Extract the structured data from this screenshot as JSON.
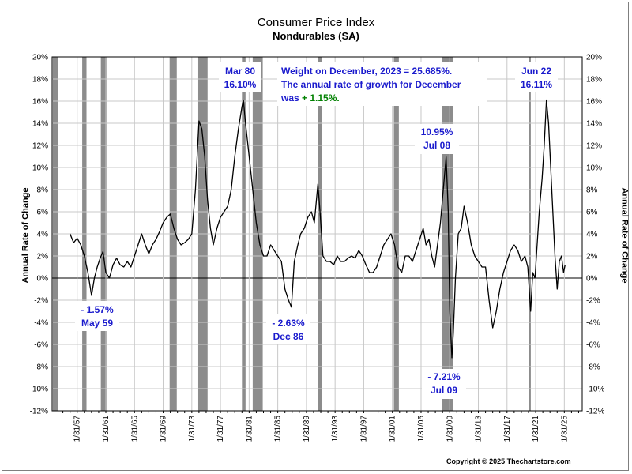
{
  "chart_data": {
    "type": "line",
    "title": "Consumer Price Index",
    "subtitle": "Nondurables (SA)",
    "ylabel": "Annual Rate of Change",
    "ylabel_right": "Annual Rate of Change",
    "ylim": [
      -12,
      20
    ],
    "xlim": [
      1953.5,
      2027.5
    ],
    "yticks": [
      -12,
      -10,
      -8,
      -6,
      -4,
      -2,
      0,
      2,
      4,
      6,
      8,
      10,
      12,
      14,
      16,
      18,
      20
    ],
    "ytick_labels": [
      "-12%",
      "-10%",
      "-8%",
      "-6%",
      "-4%",
      "-2%",
      "0%",
      "2%",
      "4%",
      "6%",
      "8%",
      "10%",
      "12%",
      "14%",
      "16%",
      "18%",
      "20%"
    ],
    "xtick_labels": [
      "1/31/57",
      "1/31/61",
      "1/31/65",
      "1/31/69",
      "1/31/73",
      "1/31/77",
      "1/31/81",
      "1/31/85",
      "1/31/89",
      "1/31/93",
      "1/31/97",
      "1/31/01",
      "1/31/05",
      "1/31/09",
      "1/31/13",
      "1/31/17",
      "1/31/21",
      "1/31/25"
    ],
    "xtick_years": [
      1957,
      1961,
      1965,
      1969,
      1973,
      1977,
      1981,
      1985,
      1989,
      1993,
      1997,
      2001,
      2005,
      2009,
      2013,
      2017,
      2021,
      2025
    ],
    "grid": true,
    "recessions": [
      [
        1953.6,
        1954.3
      ],
      [
        1957.7,
        1958.3
      ],
      [
        1960.3,
        1961.1
      ],
      [
        1969.9,
        1970.9
      ],
      [
        1973.9,
        1975.2
      ],
      [
        1980.0,
        1980.5
      ],
      [
        1981.5,
        1982.9
      ],
      [
        1990.6,
        1991.2
      ],
      [
        2001.2,
        2001.9
      ],
      [
        2007.9,
        2009.5
      ],
      [
        2020.1,
        2020.3
      ]
    ],
    "series": [
      {
        "color": "#000000",
        "x": [
          1956.0,
          1956.5,
          1957.0,
          1957.5,
          1958.0,
          1958.5,
          1959.0,
          1959.4,
          1959.8,
          1960.2,
          1960.6,
          1961.0,
          1961.5,
          1962.0,
          1962.5,
          1963.0,
          1963.5,
          1964.0,
          1964.5,
          1965.0,
          1965.5,
          1966.0,
          1966.5,
          1967.0,
          1967.5,
          1968.0,
          1968.5,
          1969.0,
          1969.5,
          1970.0,
          1970.5,
          1971.0,
          1971.5,
          1972.0,
          1972.5,
          1973.0,
          1973.5,
          1974.0,
          1974.4,
          1974.8,
          1975.2,
          1975.6,
          1976.0,
          1976.5,
          1977.0,
          1977.5,
          1978.0,
          1978.5,
          1979.0,
          1979.5,
          1980.0,
          1980.2,
          1980.5,
          1981.0,
          1981.5,
          1982.0,
          1982.5,
          1983.0,
          1983.5,
          1984.0,
          1984.5,
          1985.0,
          1985.5,
          1986.0,
          1986.5,
          1986.9,
          1987.3,
          1987.8,
          1988.2,
          1988.7,
          1989.2,
          1989.7,
          1990.1,
          1990.6,
          1990.9,
          1991.3,
          1991.8,
          1992.3,
          1992.8,
          1993.3,
          1993.8,
          1994.3,
          1994.8,
          1995.3,
          1995.8,
          1996.3,
          1996.8,
          1997.3,
          1997.8,
          1998.3,
          1998.8,
          1999.3,
          1999.8,
          2000.3,
          2000.8,
          2001.3,
          2001.8,
          2002.3,
          2002.8,
          2003.3,
          2003.8,
          2004.3,
          2004.8,
          2005.3,
          2005.7,
          2006.1,
          2006.5,
          2006.9,
          2007.3,
          2007.7,
          2008.1,
          2008.5,
          2008.8,
          2009.0,
          2009.3,
          2009.5,
          2009.8,
          2010.2,
          2010.6,
          2011.0,
          2011.5,
          2012.0,
          2012.5,
          2013.0,
          2013.5,
          2014.0,
          2014.5,
          2015.0,
          2015.5,
          2016.0,
          2016.5,
          2017.0,
          2017.5,
          2018.0,
          2018.5,
          2019.0,
          2019.5,
          2019.9,
          2020.3,
          2020.6,
          2020.9,
          2021.2,
          2021.5,
          2021.9,
          2022.2,
          2022.5,
          2022.8,
          2023.1,
          2023.4,
          2023.7,
          2024.0,
          2024.3,
          2024.6,
          2024.9,
          2025.1
        ],
        "values": [
          4.0,
          3.2,
          3.6,
          3.0,
          2.0,
          0.5,
          -1.57,
          0.0,
          1.0,
          1.8,
          2.4,
          0.5,
          0.0,
          1.2,
          1.8,
          1.2,
          1.0,
          1.5,
          1.0,
          2.0,
          3.0,
          4.0,
          3.0,
          2.2,
          3.0,
          3.5,
          4.2,
          5.0,
          5.5,
          5.8,
          4.5,
          3.5,
          3.0,
          3.2,
          3.5,
          4.0,
          8.0,
          14.2,
          13.5,
          11.0,
          7.0,
          4.5,
          3.0,
          4.5,
          5.5,
          6.0,
          6.5,
          8.0,
          11.0,
          13.5,
          15.5,
          16.1,
          14.0,
          11.0,
          8.0,
          5.0,
          3.0,
          2.0,
          2.0,
          3.0,
          2.5,
          2.0,
          1.5,
          -1.0,
          -2.0,
          -2.63,
          1.5,
          3.0,
          4.0,
          4.5,
          5.5,
          6.0,
          5.0,
          8.5,
          6.0,
          2.0,
          1.5,
          1.5,
          1.2,
          2.0,
          1.5,
          1.5,
          1.8,
          2.0,
          1.8,
          2.5,
          2.0,
          1.2,
          0.5,
          0.5,
          1.0,
          2.0,
          3.0,
          3.5,
          4.0,
          3.0,
          1.0,
          0.5,
          2.0,
          2.0,
          1.5,
          2.5,
          3.5,
          4.5,
          3.0,
          3.5,
          2.0,
          1.0,
          3.0,
          5.0,
          8.0,
          10.95,
          6.0,
          -3.0,
          -7.21,
          -5.0,
          0.0,
          4.0,
          4.5,
          6.5,
          5.0,
          3.0,
          2.0,
          1.5,
          1.0,
          1.0,
          -2.0,
          -4.5,
          -3.0,
          -1.0,
          0.5,
          1.5,
          2.5,
          3.0,
          2.5,
          1.5,
          2.0,
          1.0,
          -3.0,
          0.5,
          0.0,
          3.0,
          6.0,
          9.0,
          12.0,
          16.11,
          14.0,
          10.0,
          6.0,
          2.0,
          -1.0,
          1.5,
          2.0,
          0.5,
          1.15
        ]
      }
    ]
  },
  "annotations": {
    "low_1959": {
      "value": "- 1.57%",
      "date": "May 59"
    },
    "high_1980": {
      "date": "Mar 80",
      "value": "16.10%"
    },
    "low_1986": {
      "value": "- 2.63%",
      "date": "Dec 86"
    },
    "high_2008": {
      "value": "10.95%",
      "date": "Jul 08"
    },
    "low_2009": {
      "value": "- 7.21%",
      "date": "Jul 09"
    },
    "high_2022": {
      "date": "Jun 22",
      "value": "16.11%"
    },
    "note_line1": "Weight on December, 2023 = 25.685%.",
    "note_line2": "The annual rate of growth for December",
    "note_line3_prefix": "was ",
    "note_line3_value": "+ 1.15%.",
    "note_value_color": "#008000",
    "note_color": "#1a1acd"
  },
  "copyright": "Copyright © 2025 Thechartstore.com"
}
